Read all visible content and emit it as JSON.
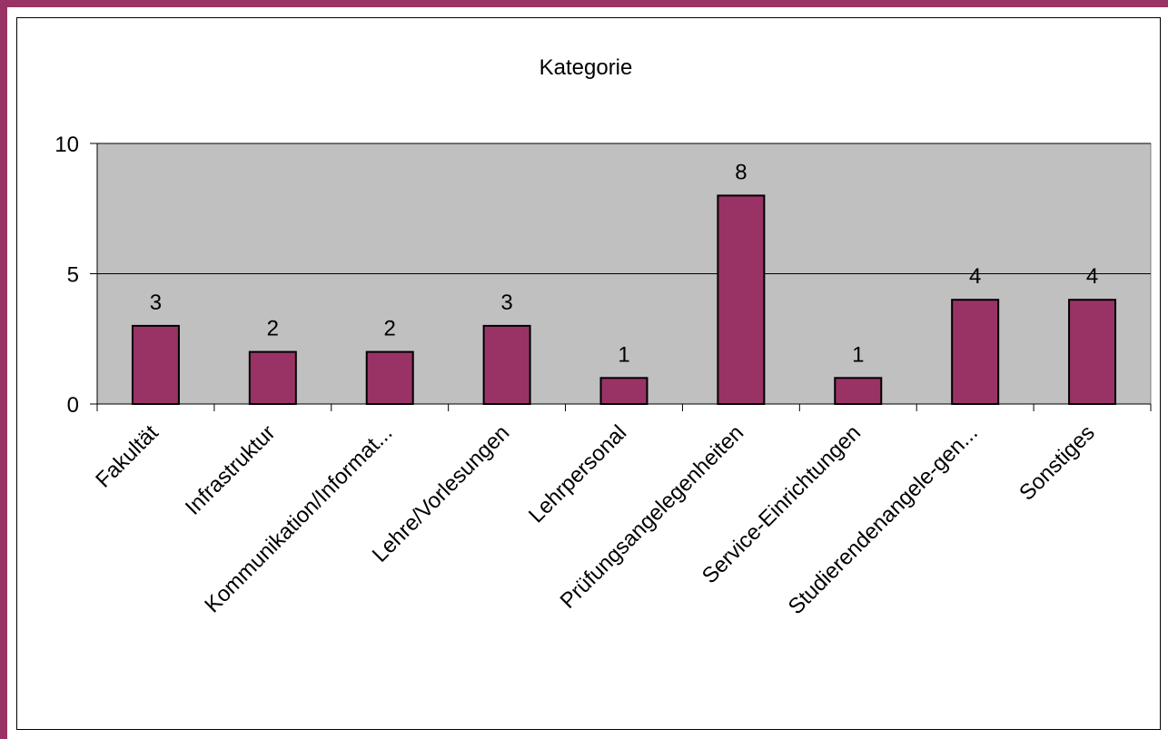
{
  "colors": {
    "accent": "#993366",
    "plot_background": "#c0c0c0",
    "bar_fill": "#993366",
    "bar_stroke": "#000000"
  },
  "chart_data": {
    "type": "bar",
    "title": "Kategorie",
    "categories": [
      "Fakultät",
      "Infrastruktur",
      "Kommunikation/Informat...",
      "Lehre/Vorlesungen",
      "Lehrpersonal",
      "Prüfungsangelegenheiten",
      "Service-Einrichtungen",
      "Studierendenangele-gen...",
      "Sonstiges"
    ],
    "values": [
      3,
      2,
      2,
      3,
      1,
      8,
      1,
      4,
      4
    ],
    "data_labels": [
      "3",
      "2",
      "2",
      "3",
      "1",
      "8",
      "1",
      "4",
      "4"
    ],
    "ylim": [
      0,
      10
    ],
    "yticks": [
      0,
      5,
      10
    ],
    "ytick_labels": [
      "0",
      "5",
      "10"
    ],
    "grid": true,
    "legend": "none"
  }
}
